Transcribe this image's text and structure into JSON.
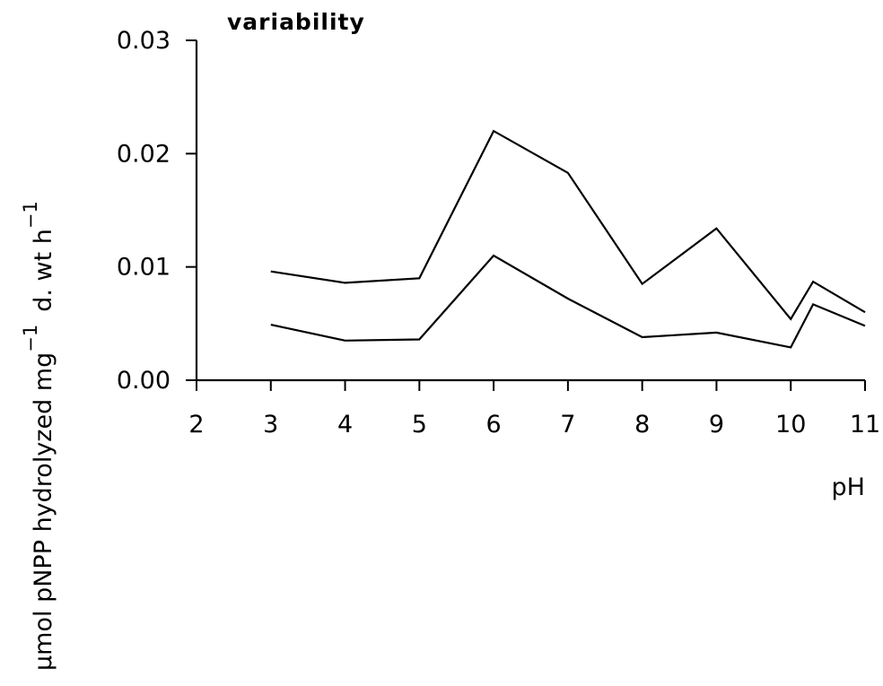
{
  "chart_data": {
    "type": "line",
    "title": "variability",
    "xlabel": "pH",
    "ylabel": {
      "main": "μmol pNPP hydrolyzed mg",
      "sup1": "−1",
      "mid": "d. wt h",
      "sup2": "−1"
    },
    "xlim": [
      2,
      11
    ],
    "ylim": [
      0,
      0.03
    ],
    "x_ticks": [
      2,
      3,
      4,
      5,
      6,
      7,
      8,
      9,
      10,
      11
    ],
    "y_ticks": [
      0,
      0.01,
      0.02,
      0.03
    ],
    "y_tick_labels": [
      "0.00",
      "0.01",
      "0.02",
      "0.03"
    ],
    "grid": false,
    "series": [
      {
        "x": [
          3,
          4,
          5,
          6,
          7,
          8,
          9,
          10,
          10.3,
          11
        ],
        "y": [
          0.0096,
          0.0086,
          0.009,
          0.022,
          0.0183,
          0.0085,
          0.0134,
          0.0054,
          0.0087,
          0.006
        ],
        "color": "#000000"
      },
      {
        "x": [
          3,
          4,
          5,
          6,
          7,
          8,
          9,
          10,
          10.3,
          11
        ],
        "y": [
          0.0049,
          0.0035,
          0.0036,
          0.011,
          0.0072,
          0.0038,
          0.0042,
          0.0029,
          0.0067,
          0.0048
        ],
        "color": "#000000"
      }
    ]
  }
}
